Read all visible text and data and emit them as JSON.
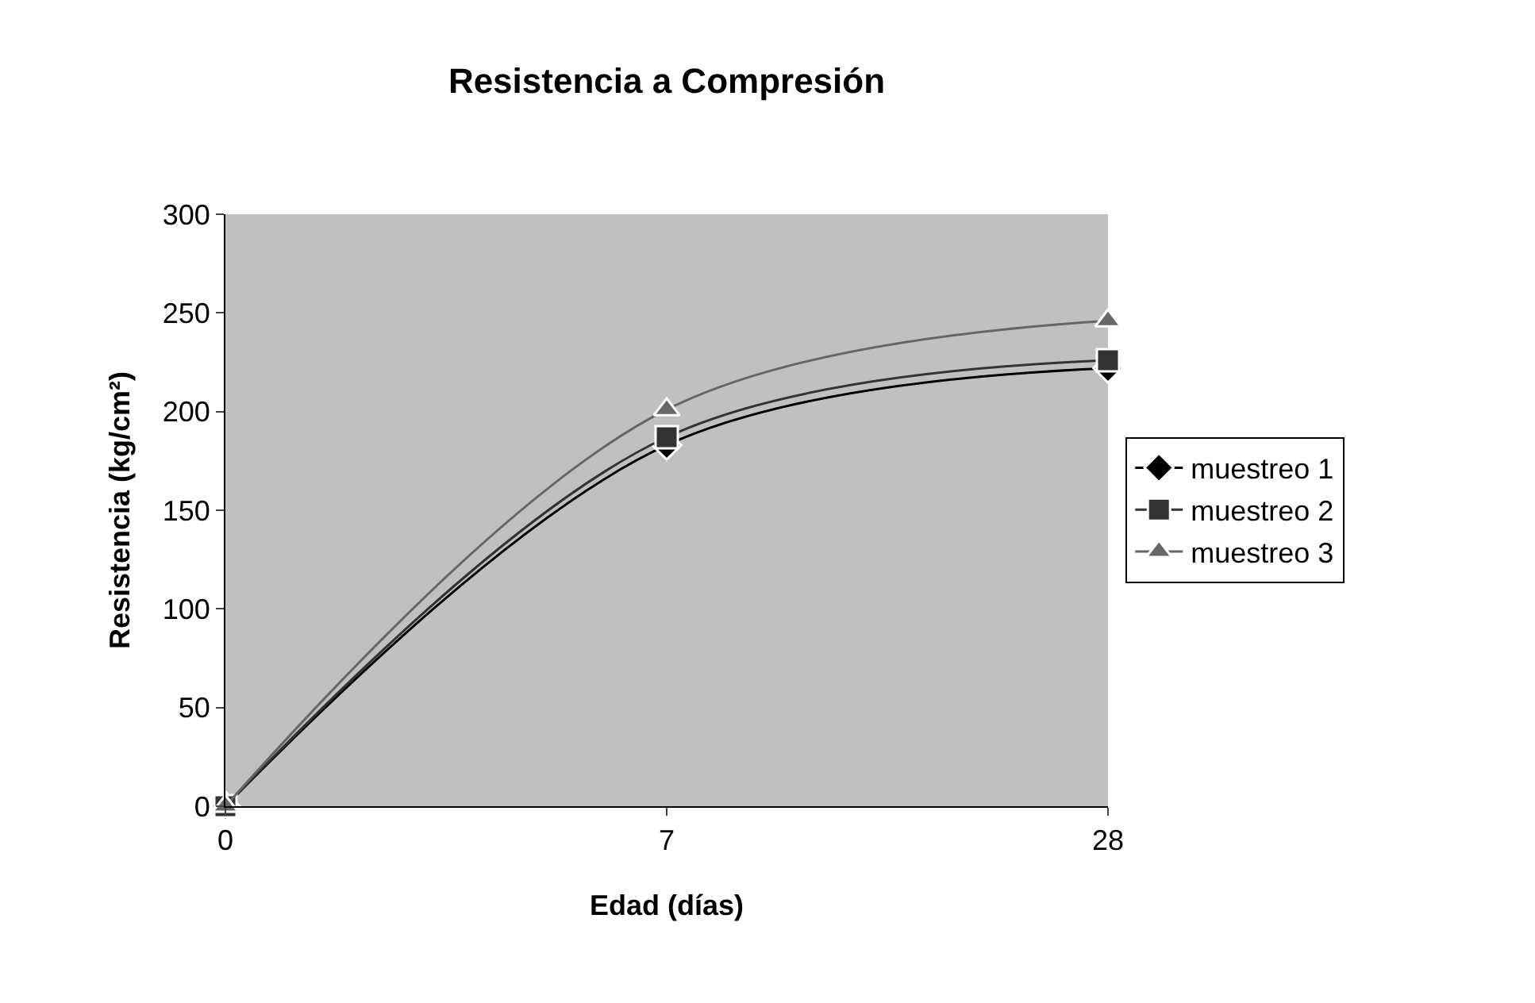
{
  "chart_data": {
    "type": "line",
    "title": "Resistencia a Compresión",
    "xlabel": "Edad (días)",
    "ylabel": "Resistencia (kg/cm²)",
    "categories": [
      "0",
      "7",
      "28"
    ],
    "series": [
      {
        "name": "muestreo 1",
        "color": "#000000",
        "marker": "diamond",
        "values": [
          0,
          183,
          222
        ]
      },
      {
        "name": "muestreo 2",
        "color": "#333333",
        "marker": "square",
        "values": [
          0,
          187,
          226
        ]
      },
      {
        "name": "muestreo 3",
        "color": "#666666",
        "marker": "triangle",
        "values": [
          0,
          201,
          246
        ]
      }
    ],
    "ylim": [
      0,
      300
    ],
    "yticks": [
      0,
      50,
      100,
      150,
      200,
      250,
      300
    ],
    "grid": false,
    "legend": "right",
    "line_style": "solid"
  }
}
